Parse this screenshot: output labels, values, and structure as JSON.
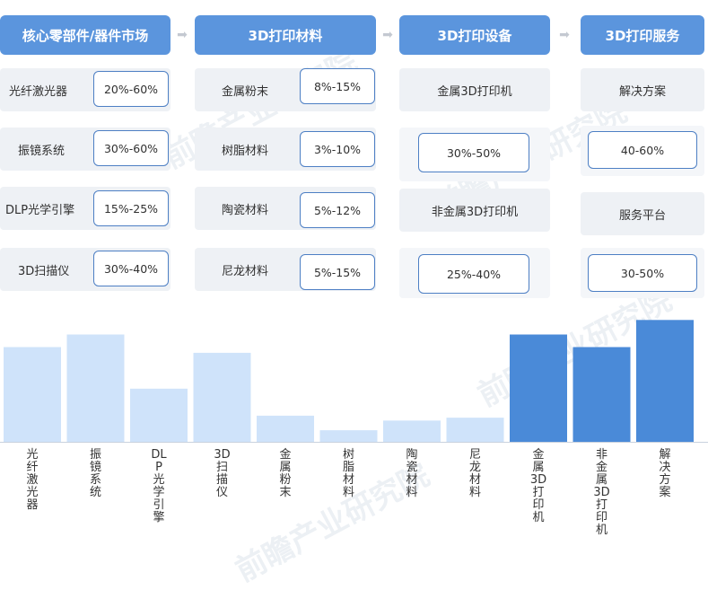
{
  "colors": {
    "header_bg": "#5b95dd",
    "cell_bg": "#eef1f5",
    "pct_border": "#4d7fc4",
    "bar_light": "#cfe3fa",
    "bar_dark": "#4a8ad8"
  },
  "arrow_icon": "right-arrow-icon",
  "columns": [
    {
      "header": "核心零部件/器件市场",
      "items": [
        {
          "name": "光纤激光器",
          "range": "20%-60%"
        },
        {
          "name": "振镜系统",
          "range": "30%-60%"
        },
        {
          "name": "DLP光学引擎",
          "range": "15%-25%"
        },
        {
          "name": "3D扫描仪",
          "range": "30%-40%"
        }
      ]
    },
    {
      "header": "3D打印材料",
      "items": [
        {
          "name": "金属粉末",
          "range": "8%-15%"
        },
        {
          "name": "树脂材料",
          "range": "3%-10%"
        },
        {
          "name": "陶瓷材料",
          "range": "5%-12%"
        },
        {
          "name": "尼龙材料",
          "range": "5%-15%"
        }
      ]
    },
    {
      "header": "3D打印设备",
      "items": [
        {
          "name": "金属3D打印机",
          "range": "30%-50%"
        },
        {
          "name": "非金属3D打印机",
          "range": "25%-40%"
        }
      ]
    },
    {
      "header": "3D打印服务",
      "items": [
        {
          "name": "解决方案",
          "range": "40-60%"
        },
        {
          "name": "服务平台",
          "range": "30-50%"
        }
      ]
    }
  ],
  "chart_data": {
    "type": "bar",
    "categories": [
      "光纤激光器",
      "振镜系统",
      "DLP光学引擎",
      "3D扫描仪",
      "金属粉末",
      "树脂材料",
      "陶瓷材料",
      "尼龙材料",
      "金属3D打印机",
      "非金属3D打印机",
      "解决方案"
    ],
    "values": [
      98,
      111,
      55,
      92,
      27,
      12,
      22,
      25,
      111,
      98,
      126
    ],
    "color_groups": [
      "light",
      "light",
      "light",
      "light",
      "light",
      "light",
      "light",
      "light",
      "dark",
      "dark",
      "dark"
    ],
    "ylim": [
      0,
      130
    ],
    "grid": false
  },
  "watermark": "前瞻产业研究院"
}
